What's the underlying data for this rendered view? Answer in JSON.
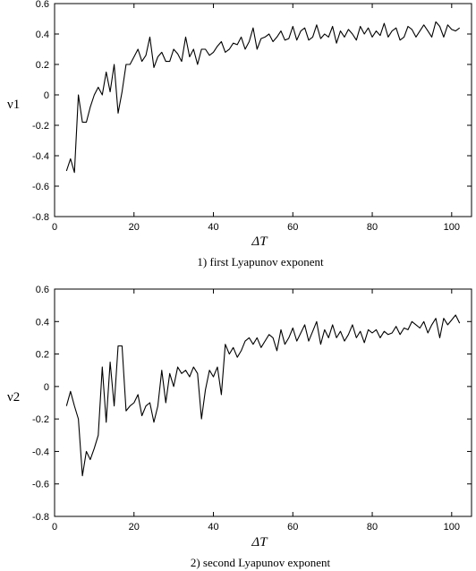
{
  "chart_data": [
    {
      "type": "line",
      "title": "1) first Lyapunov exponent",
      "xlabel": "ΔT",
      "ylabel": "ν1",
      "xlim": [
        0,
        105
      ],
      "ylim": [
        -0.8,
        0.6
      ],
      "xticks": [
        "0",
        "20",
        "40",
        "60",
        "80",
        "100"
      ],
      "yticks": [
        "0.6",
        "0.4",
        "0.2",
        "0",
        "-0.2",
        "-0.4",
        "-0.6",
        "-0.8"
      ],
      "grid": false,
      "series": [
        {
          "x": [
            3,
            4,
            5,
            6,
            7,
            8,
            9,
            10,
            11,
            12,
            13,
            14,
            15,
            16,
            17,
            18,
            19,
            20,
            21,
            22,
            23,
            24,
            25,
            26,
            27,
            28,
            29,
            30,
            31,
            32,
            33,
            34,
            35,
            36,
            37,
            38,
            39,
            40,
            41,
            42,
            43,
            44,
            45,
            46,
            47,
            48,
            49,
            50,
            51,
            52,
            53,
            54,
            55,
            56,
            57,
            58,
            59,
            60,
            61,
            62,
            63,
            64,
            65,
            66,
            67,
            68,
            69,
            70,
            71,
            72,
            73,
            74,
            75,
            76,
            77,
            78,
            79,
            80,
            81,
            82,
            83,
            84,
            85,
            86,
            87,
            88,
            89,
            90,
            91,
            92,
            93,
            94,
            95,
            96,
            97,
            98,
            99,
            100,
            101,
            102
          ],
          "y": [
            -0.5,
            -0.42,
            -0.51,
            0.0,
            -0.18,
            -0.18,
            -0.08,
            0.0,
            0.05,
            0.0,
            0.15,
            0.02,
            0.2,
            -0.12,
            0.02,
            0.2,
            0.2,
            0.25,
            0.3,
            0.22,
            0.26,
            0.38,
            0.18,
            0.25,
            0.28,
            0.22,
            0.22,
            0.3,
            0.27,
            0.22,
            0.38,
            0.25,
            0.3,
            0.2,
            0.3,
            0.3,
            0.26,
            0.28,
            0.32,
            0.35,
            0.28,
            0.3,
            0.34,
            0.33,
            0.38,
            0.3,
            0.35,
            0.44,
            0.3,
            0.37,
            0.38,
            0.4,
            0.35,
            0.38,
            0.42,
            0.36,
            0.37,
            0.45,
            0.36,
            0.42,
            0.44,
            0.36,
            0.38,
            0.46,
            0.37,
            0.4,
            0.38,
            0.45,
            0.34,
            0.42,
            0.38,
            0.43,
            0.4,
            0.36,
            0.45,
            0.4,
            0.44,
            0.38,
            0.42,
            0.39,
            0.47,
            0.38,
            0.42,
            0.44,
            0.36,
            0.38,
            0.45,
            0.43,
            0.38,
            0.42,
            0.46,
            0.42,
            0.38,
            0.48,
            0.45,
            0.38,
            0.46,
            0.43,
            0.42,
            0.44
          ]
        }
      ]
    },
    {
      "type": "line",
      "title": "2) second Lyapunov exponent",
      "xlabel": "ΔT",
      "ylabel": "ν2",
      "xlim": [
        0,
        105
      ],
      "ylim": [
        -0.8,
        0.6
      ],
      "xticks": [
        "0",
        "20",
        "40",
        "60",
        "80",
        "100"
      ],
      "yticks": [
        "0.6",
        "0.4",
        "0.2",
        "0",
        "-0.2",
        "-0.4",
        "-0.6",
        "-0.8"
      ],
      "grid": false,
      "series": [
        {
          "x": [
            3,
            4,
            5,
            6,
            7,
            8,
            9,
            10,
            11,
            12,
            13,
            14,
            15,
            16,
            17,
            18,
            19,
            20,
            21,
            22,
            23,
            24,
            25,
            26,
            27,
            28,
            29,
            30,
            31,
            32,
            33,
            34,
            35,
            36,
            37,
            38,
            39,
            40,
            41,
            42,
            43,
            44,
            45,
            46,
            47,
            48,
            49,
            50,
            51,
            52,
            53,
            54,
            55,
            56,
            57,
            58,
            59,
            60,
            61,
            62,
            63,
            64,
            65,
            66,
            67,
            68,
            69,
            70,
            71,
            72,
            73,
            74,
            75,
            76,
            77,
            78,
            79,
            80,
            81,
            82,
            83,
            84,
            85,
            86,
            87,
            88,
            89,
            90,
            91,
            92,
            93,
            94,
            95,
            96,
            97,
            98,
            99,
            100,
            101,
            102
          ],
          "y": [
            -0.12,
            -0.03,
            -0.12,
            -0.2,
            -0.55,
            -0.4,
            -0.45,
            -0.38,
            -0.3,
            0.12,
            -0.22,
            0.15,
            -0.12,
            0.25,
            0.25,
            -0.15,
            -0.12,
            -0.1,
            -0.05,
            -0.18,
            -0.12,
            -0.1,
            -0.22,
            -0.12,
            0.1,
            -0.1,
            0.08,
            0.0,
            0.12,
            0.08,
            0.1,
            0.06,
            0.12,
            0.08,
            -0.2,
            -0.02,
            0.1,
            0.06,
            0.12,
            -0.05,
            0.26,
            0.2,
            0.24,
            0.18,
            0.22,
            0.28,
            0.3,
            0.26,
            0.3,
            0.24,
            0.28,
            0.32,
            0.3,
            0.22,
            0.35,
            0.26,
            0.3,
            0.36,
            0.28,
            0.33,
            0.38,
            0.28,
            0.34,
            0.4,
            0.26,
            0.35,
            0.3,
            0.38,
            0.3,
            0.34,
            0.28,
            0.32,
            0.38,
            0.3,
            0.34,
            0.27,
            0.35,
            0.33,
            0.35,
            0.3,
            0.34,
            0.32,
            0.33,
            0.37,
            0.32,
            0.36,
            0.35,
            0.4,
            0.38,
            0.36,
            0.4,
            0.33,
            0.38,
            0.42,
            0.3,
            0.42,
            0.38,
            0.41,
            0.44,
            0.39
          ]
        }
      ]
    }
  ]
}
